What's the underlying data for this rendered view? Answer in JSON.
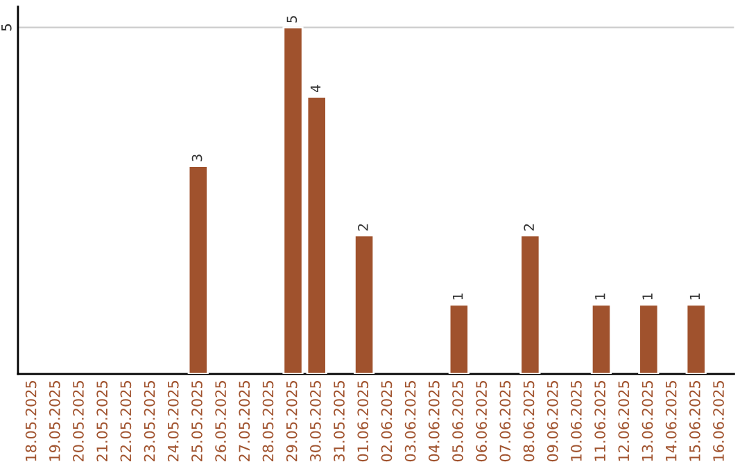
{
  "chart_data": {
    "type": "bar",
    "categories": [
      "18.05.2025",
      "19.05.2025",
      "20.05.2025",
      "21.05.2025",
      "22.05.2025",
      "23.05.2025",
      "24.05.2025",
      "25.05.2025",
      "26.05.2025",
      "27.05.2025",
      "28.05.2025",
      "29.05.2025",
      "30.05.2025",
      "31.05.2025",
      "01.06.2025",
      "02.06.2025",
      "03.06.2025",
      "04.06.2025",
      "05.06.2025",
      "06.06.2025",
      "07.06.2025",
      "08.06.2025",
      "09.06.2025",
      "10.06.2025",
      "11.06.2025",
      "12.06.2025",
      "13.06.2025",
      "14.06.2025",
      "15.06.2025",
      "16.06.2025"
    ],
    "values": [
      null,
      null,
      null,
      null,
      null,
      null,
      null,
      3,
      null,
      null,
      null,
      5,
      4,
      null,
      2,
      null,
      null,
      null,
      1,
      null,
      null,
      2,
      null,
      null,
      1,
      null,
      1,
      null,
      1,
      null
    ],
    "color": "#a0522d",
    "ylim": [
      0,
      5.3
    ],
    "yticks": [
      5
    ],
    "grid": "y",
    "data_labels": true
  }
}
